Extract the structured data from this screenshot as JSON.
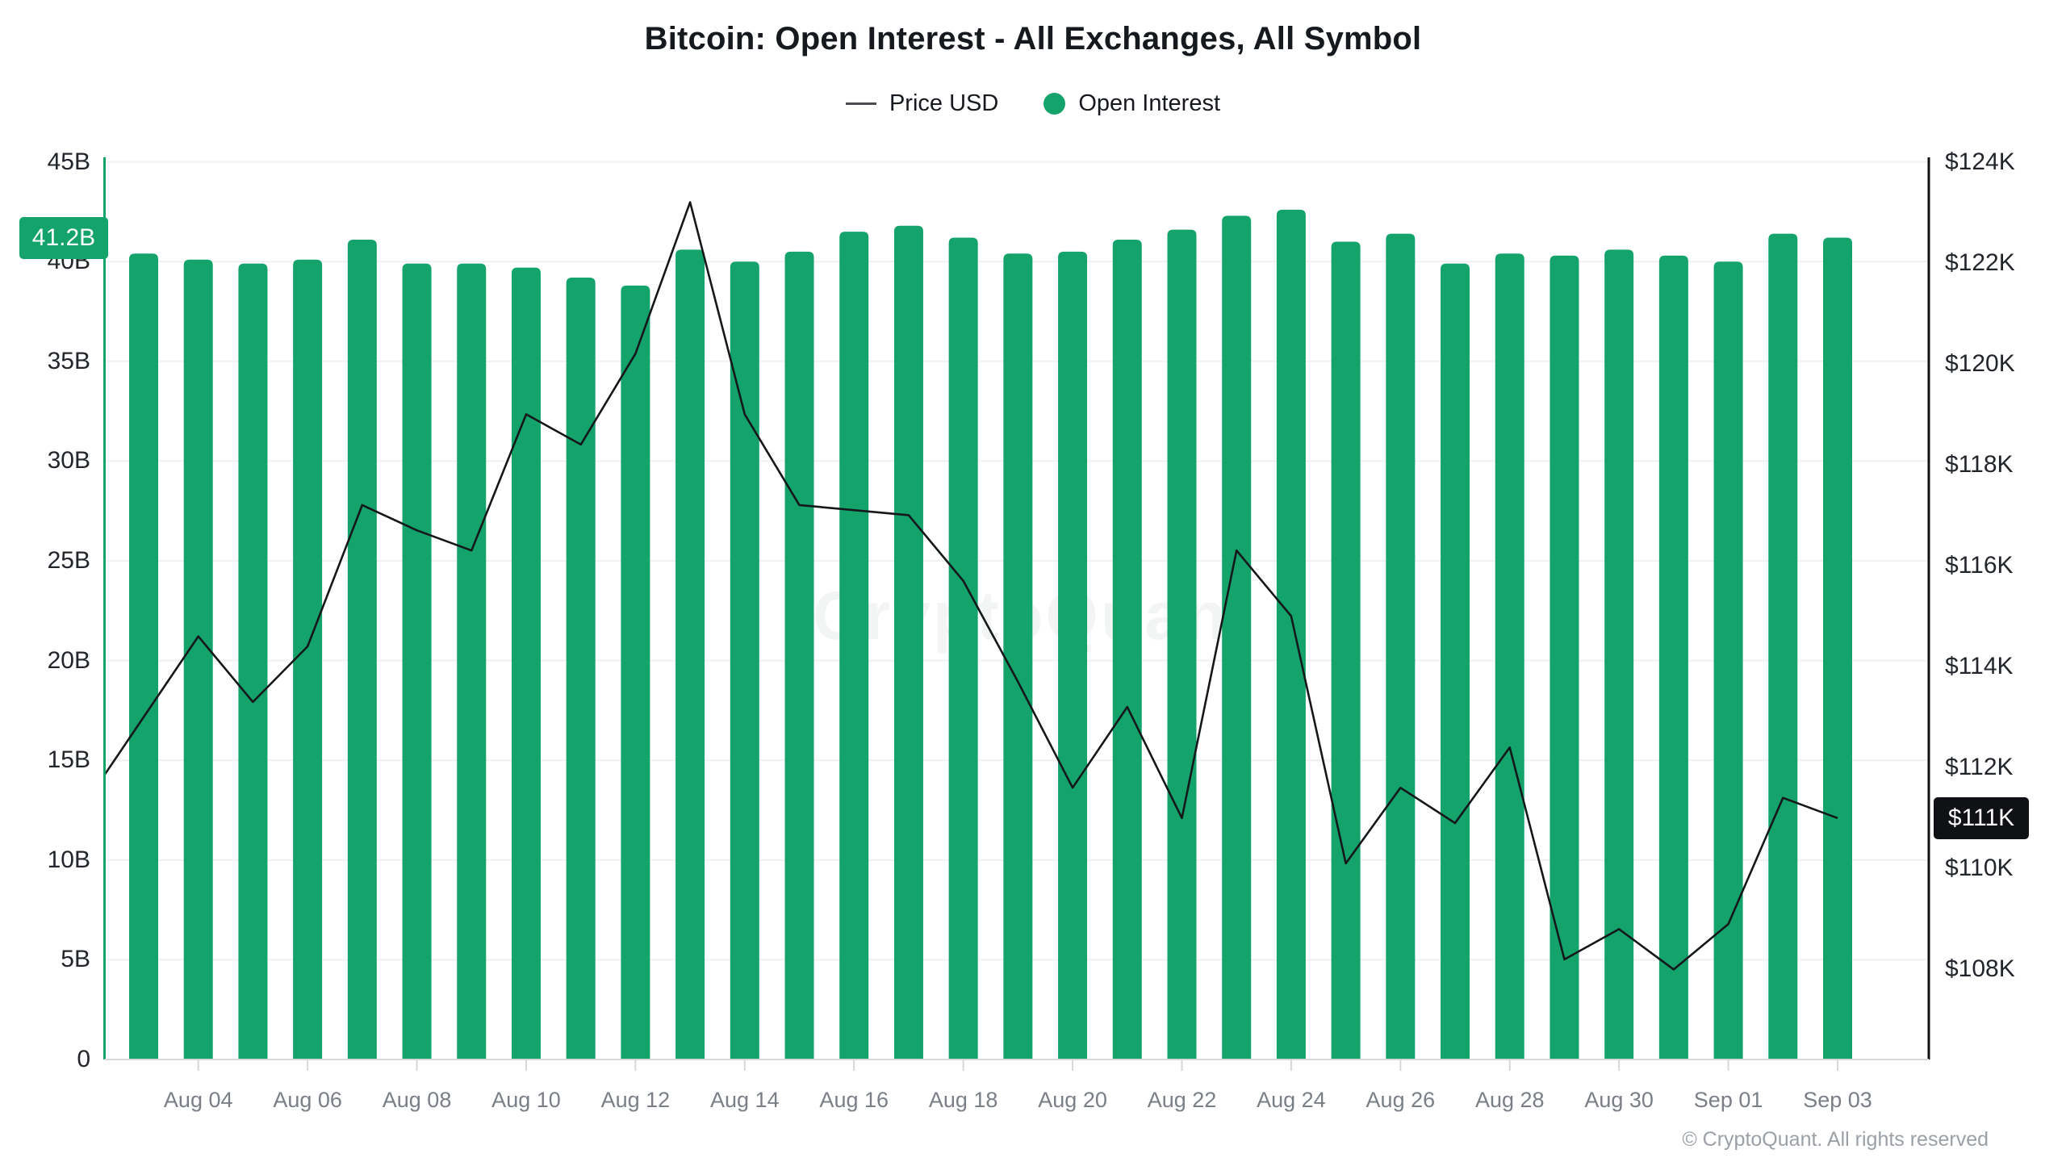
{
  "chart_data": {
    "type": "combo",
    "title": "Bitcoin: Open Interest - All Exchanges, All Symbol",
    "legend": [
      {
        "label": "Price USD",
        "marker": "line"
      },
      {
        "label": "Open Interest",
        "marker": "dot",
        "color": "#15a36c"
      }
    ],
    "x": [
      "Aug 03",
      "Aug 04",
      "Aug 05",
      "Aug 06",
      "Aug 07",
      "Aug 08",
      "Aug 09",
      "Aug 10",
      "Aug 11",
      "Aug 12",
      "Aug 13",
      "Aug 14",
      "Aug 15",
      "Aug 16",
      "Aug 17",
      "Aug 18",
      "Aug 19",
      "Aug 20",
      "Aug 21",
      "Aug 22",
      "Aug 23",
      "Aug 24",
      "Aug 25",
      "Aug 26",
      "Aug 27",
      "Aug 28",
      "Aug 29",
      "Aug 30",
      "Aug 31",
      "Sep 01",
      "Sep 02",
      "Sep 03"
    ],
    "x_tick_labels": [
      "Aug 04",
      "Aug 06",
      "Aug 08",
      "Aug 10",
      "Aug 12",
      "Aug 14",
      "Aug 16",
      "Aug 18",
      "Aug 20",
      "Aug 22",
      "Aug 24",
      "Aug 26",
      "Aug 28",
      "Aug 30",
      "Sep 01",
      "Sep 03"
    ],
    "series": [
      {
        "name": "Open Interest",
        "type": "bar",
        "axis": "left",
        "unit": "B USD",
        "color": "#15a36c",
        "values": [
          40.4,
          40.1,
          39.9,
          40.1,
          41.1,
          39.9,
          39.9,
          39.7,
          39.2,
          38.8,
          40.6,
          40.0,
          40.5,
          41.5,
          41.8,
          41.2,
          40.4,
          40.5,
          41.1,
          41.6,
          42.3,
          42.6,
          41.0,
          41.4,
          39.9,
          40.4,
          40.3,
          40.6,
          40.3,
          40.0,
          41.4,
          41.2
        ]
      },
      {
        "name": "Price USD",
        "type": "line",
        "axis": "right",
        "unit": "K USD",
        "color": "#15181b",
        "values": [
          113.0,
          114.6,
          113.3,
          114.4,
          117.2,
          116.7,
          116.3,
          119.0,
          118.4,
          120.2,
          123.2,
          119.0,
          117.2,
          117.1,
          117.0,
          115.7,
          113.7,
          111.6,
          113.2,
          111.0,
          116.3,
          115.0,
          110.1,
          111.6,
          110.9,
          112.4,
          108.2,
          108.8,
          108.0,
          108.9,
          111.4,
          111.0
        ]
      }
    ],
    "left_axis": {
      "ticks": [
        "45B",
        "40B",
        "35B",
        "30B",
        "25B",
        "20B",
        "15B",
        "10B",
        "5B",
        "0"
      ],
      "tick_values": [
        45,
        40,
        35,
        30,
        25,
        20,
        15,
        10,
        5,
        0
      ],
      "range": [
        0,
        45
      ],
      "badge": "41.2B",
      "badge_value": 41.2,
      "badge_color": "#15a36c"
    },
    "right_axis": {
      "ticks": [
        "$124K",
        "$122K",
        "$120K",
        "$118K",
        "$116K",
        "$114K",
        "$112K",
        "$110K",
        "$108K"
      ],
      "tick_values": [
        124,
        122,
        120,
        118,
        116,
        114,
        112,
        110,
        108
      ],
      "range": [
        108,
        124
      ],
      "badge": "$111K",
      "badge_value": 111,
      "badge_color": "#101114"
    },
    "grid": "horizontal",
    "legend_position": "top",
    "watermark": "CryptoQuant",
    "copyright": "© CryptoQuant. All rights reserved"
  }
}
